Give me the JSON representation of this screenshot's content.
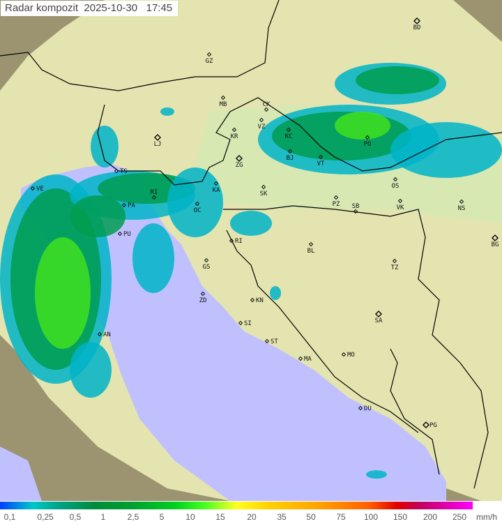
{
  "title": "Radar kompozit  2025-10-30   17:45",
  "legend": {
    "unit": "mm/h",
    "ticks": [
      "0,1",
      "0,25",
      "0,5",
      "1",
      "2,5",
      "5",
      "10",
      "15",
      "20",
      "35",
      "50",
      "75",
      "100",
      "150",
      "200",
      "250"
    ]
  },
  "colors": {
    "sea": "#c0c0ff",
    "land": "#e6e6b0",
    "outside": "#9c9470",
    "rain_light": "#00b4c8",
    "rain_mid": "#009c50",
    "rain_heavy": "#40e020"
  },
  "cities": [
    {
      "code": "BD",
      "big": true
    },
    {
      "code": "GZ"
    },
    {
      "code": "MB"
    },
    {
      "code": "CK"
    },
    {
      "code": "VZ"
    },
    {
      "code": "KR"
    },
    {
      "code": "KC"
    },
    {
      "code": "LJ",
      "big": true
    },
    {
      "code": "ZG",
      "big": true
    },
    {
      "code": "BJ"
    },
    {
      "code": "VT"
    },
    {
      "code": "PO"
    },
    {
      "code": "OS"
    },
    {
      "code": "TS"
    },
    {
      "code": "VE"
    },
    {
      "code": "RI"
    },
    {
      "code": "KA"
    },
    {
      "code": "SK"
    },
    {
      "code": "PZ"
    },
    {
      "code": "SB"
    },
    {
      "code": "VK"
    },
    {
      "code": "NS"
    },
    {
      "code": "PA"
    },
    {
      "code": "OC"
    },
    {
      "code": "PU"
    },
    {
      "code": "RI"
    },
    {
      "code": "BL"
    },
    {
      "code": "BG",
      "big": true
    },
    {
      "code": "GS"
    },
    {
      "code": "TZ"
    },
    {
      "code": "ZD"
    },
    {
      "code": "KN"
    },
    {
      "code": "SA",
      "big": true
    },
    {
      "code": "SI"
    },
    {
      "code": "ST"
    },
    {
      "code": "AN"
    },
    {
      "code": "MA"
    },
    {
      "code": "MO"
    },
    {
      "code": "DU"
    },
    {
      "code": "PG",
      "big": true
    }
  ]
}
